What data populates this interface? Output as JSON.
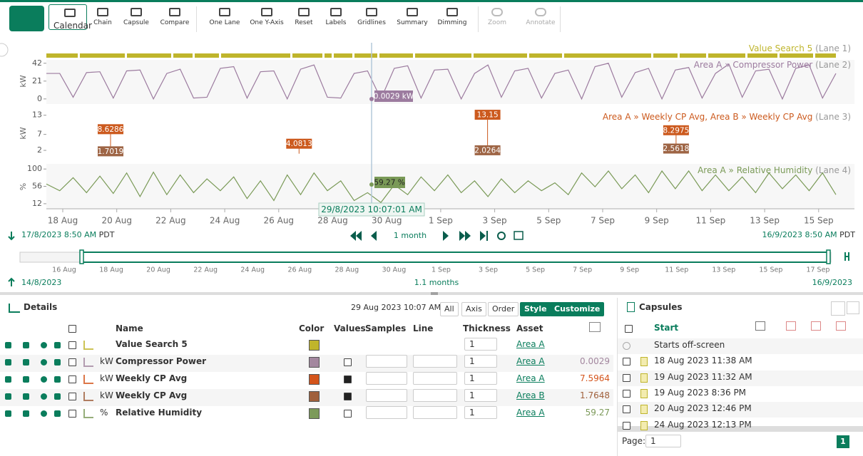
{
  "toolbar": {
    "buttons": [
      "Calendar",
      "Chain",
      "Capsule",
      "Compare",
      "One Lane",
      "One Y-Axis",
      "Reset",
      "Labels",
      "Gridlines",
      "Summary",
      "Dimming",
      "Zoom",
      "Annotate"
    ]
  },
  "trend": {
    "lanes": [
      {
        "title": "Value Search 5",
        "lane": "(Lane 1)",
        "color": "#bfb52c"
      },
      {
        "title": "Area A » Compressor Power",
        "lane": "(Lane 2)",
        "unit": "kW",
        "color": "#9c7b9f",
        "ylim": [
          -6,
          46
        ],
        "yticks": [
          0,
          21,
          42
        ],
        "cursor_label": "0.0029 kW",
        "values": [
          30,
          30,
          2,
          31,
          32,
          1,
          33,
          34,
          0,
          30,
          35,
          1,
          2,
          36,
          38,
          1,
          32,
          33,
          0,
          35,
          40,
          2,
          1,
          30,
          33,
          0,
          36,
          39,
          1,
          34,
          35,
          0,
          30,
          40,
          2,
          33,
          36,
          1,
          30,
          34,
          0,
          38,
          42,
          2,
          31,
          36,
          0,
          34,
          37,
          1,
          30,
          41,
          2,
          33,
          35,
          0,
          36,
          40,
          1,
          30
        ]
      },
      {
        "title": "Area A » Weekly CP Avg, Area B » Weekly CP Avg",
        "lane": "(Lane 3)",
        "unit": "kW",
        "ylim": [
          0,
          14.5
        ],
        "yticks": [
          2,
          7,
          13
        ],
        "series": [
          {
            "color": "#cc5a1e",
            "values": [
              8.6286,
              4.0813,
              13.15,
              8.2975
            ]
          },
          {
            "color": "#9e6545",
            "values": [
              1.7019,
              null,
              2.0264,
              2.5618
            ]
          }
        ]
      },
      {
        "title": "Area A » Relative Humidity",
        "lane": "(Lane 4)",
        "unit": "%",
        "color": "#7a9a57",
        "ylim": [
          1,
          113
        ],
        "yticks": [
          12,
          56,
          100
        ],
        "cursor_label": "59.27 %",
        "values": [
          62,
          45,
          78,
          40,
          82,
          38,
          90,
          30,
          92,
          35,
          85,
          40,
          75,
          45,
          80,
          25,
          70,
          20,
          85,
          35,
          90,
          45,
          70,
          20,
          40,
          15,
          60,
          35,
          80,
          45,
          85,
          40,
          70,
          30,
          75,
          40,
          70,
          45,
          65,
          35,
          90,
          55,
          95,
          50,
          85,
          40,
          95,
          50,
          95,
          45,
          85,
          45,
          80,
          40,
          90,
          50,
          85,
          45,
          90,
          35
        ]
      }
    ],
    "xticks": [
      "18 Aug",
      "20 Aug",
      "22 Aug",
      "24 Aug",
      "26 Aug",
      "28 Aug",
      "30 Aug",
      "1 Sep",
      "3 Sep",
      "5 Sep",
      "7 Sep",
      "9 Sep",
      "11 Sep",
      "13 Sep",
      "15 Sep"
    ],
    "cursor_time": "29/8/2023 10:07:01 AM",
    "start": "17/8/2023 8:50 AM",
    "end": "16/9/2023 8:50 AM",
    "timezone": "PDT",
    "span": "1 month"
  },
  "overview": {
    "xticks": [
      "16 Aug",
      "18 Aug",
      "20 Aug",
      "22 Aug",
      "24 Aug",
      "26 Aug",
      "28 Aug",
      "30 Aug",
      "1 Sep",
      "3 Sep",
      "5 Sep",
      "7 Sep",
      "9 Sep",
      "11 Sep",
      "13 Sep",
      "15 Sep",
      "17 Sep"
    ],
    "start": "14/8/2023",
    "end": "16/9/2023",
    "span": "1.1 months"
  },
  "details": {
    "title": "Details",
    "timestamp": "29 Aug 2023 10:07 AM",
    "buttons": [
      "All",
      "Axis",
      "Order",
      "Style",
      "Customize"
    ],
    "columns": [
      "Name",
      "Color",
      "Values",
      "Samples",
      "Line",
      "Thickness",
      "Asset"
    ],
    "rows": [
      {
        "name": "Value Search 5",
        "color": "#c0b52b",
        "thickness": "1",
        "asset": "Area A"
      },
      {
        "name": "Compressor Power",
        "unit": "kW",
        "color": "#a3879f",
        "values_checked": false,
        "thickness": "1",
        "asset": "Area A",
        "value": "0.0029"
      },
      {
        "name": "Weekly CP Avg",
        "unit": "kW",
        "color": "#d4541b",
        "values_checked": true,
        "thickness": "1",
        "asset": "Area A",
        "value": "7.5964"
      },
      {
        "name": "Weekly CP Avg",
        "unit": "kW",
        "color": "#a0603c",
        "values_checked": true,
        "thickness": "1",
        "asset": "Area B",
        "value": "1.7648"
      },
      {
        "name": "Relative Humidity",
        "unit": "%",
        "color": "#7c9a5a",
        "values_checked": false,
        "thickness": "1",
        "asset": "Area A",
        "value": "59.27"
      }
    ]
  },
  "capsules": {
    "title": "Capsules",
    "column": "Start",
    "rows": [
      "Starts off-screen",
      "18 Aug 2023 11:38 AM",
      "19 Aug 2023 11:32 AM",
      "19 Aug 2023 8:36 PM",
      "20 Aug 2023 12:46 PM",
      "24 Aug 2023 12:13 PM"
    ],
    "page_label": "Page:",
    "page": "1",
    "current_page": "1"
  }
}
